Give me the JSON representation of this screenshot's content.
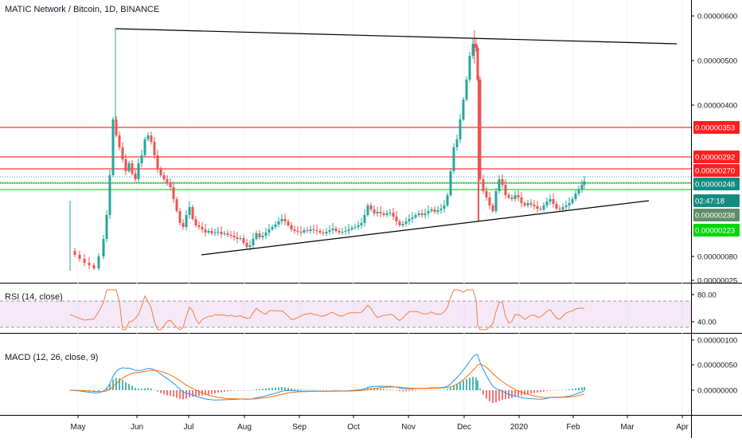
{
  "header": {
    "title": "MATIC Network / Bitcoin, 1D, BINANCE"
  },
  "indicators": {
    "rsi_label": "RSI (14, close)",
    "macd_label": "MACD (12, 26, close, 9)"
  },
  "price_axis": {
    "ticks": [
      "0.00000600",
      "0.00000500",
      "0.00000400",
      "0.00000080",
      "0.00000025"
    ],
    "tags": [
      {
        "text": "0.00000353",
        "color": "#ff1f1f"
      },
      {
        "text": "0.00000292",
        "color": "#ff1f1f"
      },
      {
        "text": "0.00000270",
        "color": "#ff1f1f"
      },
      {
        "text": "0.00000248",
        "color": "#138d82"
      },
      {
        "text": "02:47:18",
        "color": "#138d82"
      },
      {
        "text": "0.00000238",
        "color": "#5f8f68"
      },
      {
        "text": "0.00000223",
        "color": "#00d60c"
      }
    ],
    "partial_label": "0."
  },
  "rsi_axis": {
    "ticks": [
      "80.00",
      "40.00"
    ]
  },
  "macd_axis": {
    "ticks": [
      "0.00000100",
      "0.00000050",
      "0.00000000"
    ]
  },
  "time_axis": {
    "months": [
      "May",
      "Jun",
      "Jul",
      "Aug",
      "Sep",
      "Oct",
      "Nov",
      "Dec",
      "2020",
      "Feb",
      "Mar",
      "Apr"
    ]
  },
  "colors": {
    "up": "#26a69a",
    "down": "#ef5350",
    "rsi_line": "#f57c3b",
    "rsi_band": "#9c27b0",
    "macd_line": "#2196f3",
    "signal_line": "#ff6d00",
    "red_level": "#ff0000",
    "green_level": "#00c000",
    "trend": "#000000"
  }
}
